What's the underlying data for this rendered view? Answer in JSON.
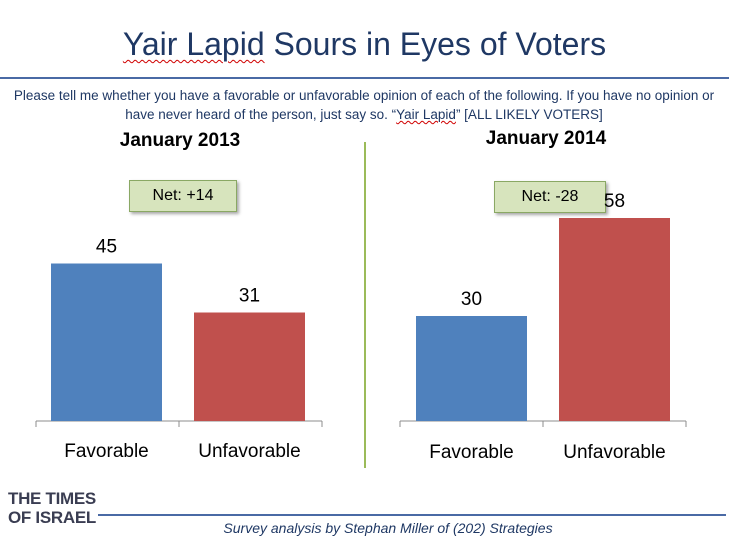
{
  "header": {
    "title_name": "Yair Lapid",
    "title_rest": " Sours in Eyes of Voters",
    "question_part1": "Please tell me whether  you have a favorable or unfavorable opinion  of each of the following. If you have no opinion  or have never heard of the person, just say so. “",
    "question_name": "Yair Lapid",
    "question_part2": "” [ALL LIKELY VOTERS]"
  },
  "chart_data": [
    {
      "type": "bar",
      "title": "January 2013",
      "net_label": "Net: +14",
      "categories": [
        "Favorable",
        "Unfavorable"
      ],
      "values": [
        45,
        31
      ],
      "colors": [
        "#4f81bd",
        "#c0504d"
      ],
      "ylim": [
        0,
        70
      ],
      "grid": false
    },
    {
      "type": "bar",
      "title": "January 2014",
      "net_label": "Net: -28",
      "categories": [
        "Favorable",
        "Unfavorable"
      ],
      "values": [
        30,
        58
      ],
      "colors": [
        "#4f81bd",
        "#c0504d"
      ],
      "ylim": [
        0,
        70
      ],
      "grid": false
    }
  ],
  "branding": {
    "logo_line1": "THE TIMES",
    "logo_line2": "OF ISRAEL"
  },
  "footer": {
    "credit": "Survey analysis by Stephan Miller of (202) Strategies"
  }
}
